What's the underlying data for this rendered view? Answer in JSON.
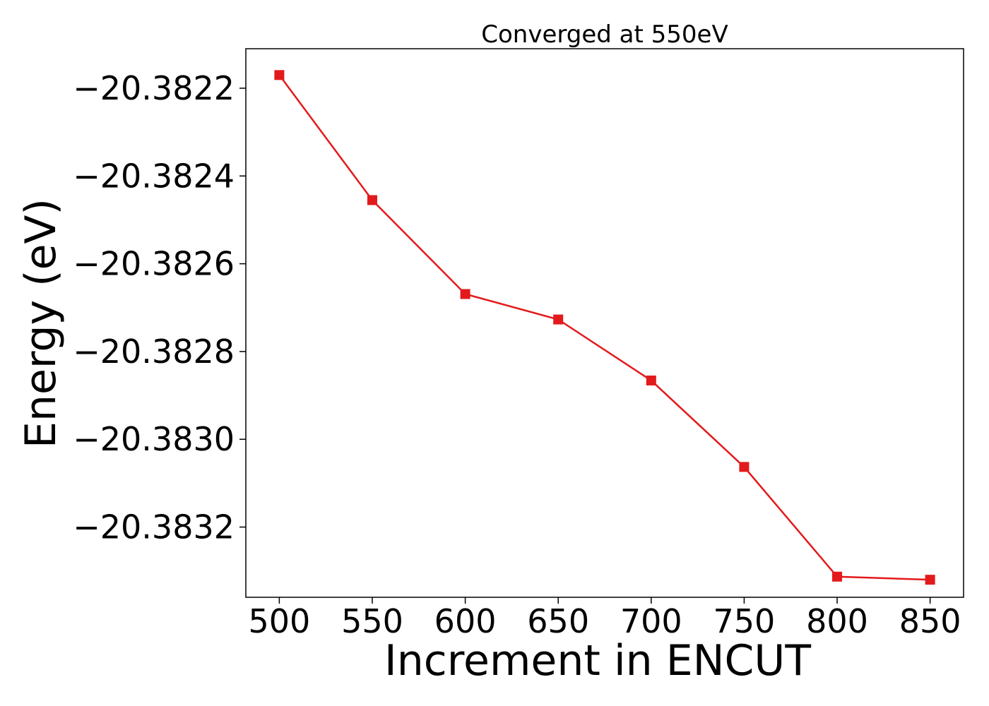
{
  "chart_data": {
    "type": "line",
    "title": "Converged at 550eV",
    "xlabel": "Increment in ENCUT",
    "ylabel": "Energy (eV)",
    "x": [
      500,
      550,
      600,
      650,
      700,
      750,
      800,
      850
    ],
    "series": [
      {
        "values": [
          -20.38217,
          -20.382455,
          -20.382669,
          -20.382727,
          -20.382866,
          -20.383063,
          -20.383313,
          -20.38332
        ],
        "color": "#e31a1c",
        "marker": "square"
      }
    ],
    "xlim": [
      482,
      868
    ],
    "ylim": [
      -20.38336,
      -20.38211
    ],
    "xticks": [
      500,
      550,
      600,
      650,
      700,
      750,
      800,
      850
    ],
    "xtick_labels": [
      "500",
      "550",
      "600",
      "650",
      "700",
      "750",
      "800",
      "850"
    ],
    "yticks": [
      -20.3822,
      -20.3824,
      -20.3826,
      -20.3828,
      -20.383,
      -20.3832
    ],
    "ytick_labels": [
      "−20.3822",
      "−20.3824",
      "−20.3826",
      "−20.3828",
      "−20.3830",
      "−20.3832"
    ],
    "grid": false,
    "legend": "none"
  }
}
